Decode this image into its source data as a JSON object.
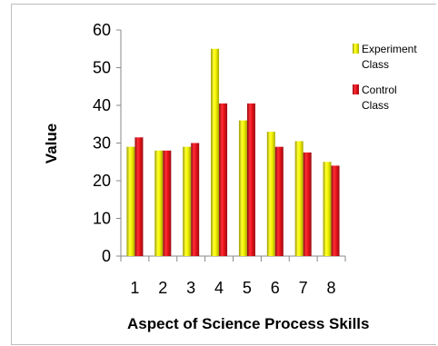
{
  "chart_data": {
    "type": "bar",
    "title": "",
    "xlabel": "Aspect of Science Process Skills",
    "ylabel": "Value",
    "categories": [
      "1",
      "2",
      "3",
      "4",
      "5",
      "6",
      "7",
      "8"
    ],
    "ylim": [
      0,
      60
    ],
    "yticks": [
      "0",
      "10",
      "20",
      "30",
      "40",
      "50",
      "60"
    ],
    "grid": false,
    "legend_position": "top-right",
    "series": [
      {
        "name": "Experiment Class",
        "legend_lines": [
          "Experiment",
          "Class"
        ],
        "color": "#f2f200",
        "values": [
          29,
          28,
          29,
          55,
          36,
          33,
          30.5,
          25
        ]
      },
      {
        "name": "Control Class",
        "legend_lines": [
          "Control",
          "Class"
        ],
        "color": "#e8121b",
        "values": [
          31.5,
          28,
          30,
          40.5,
          40.5,
          29,
          27.5,
          24
        ]
      }
    ]
  }
}
